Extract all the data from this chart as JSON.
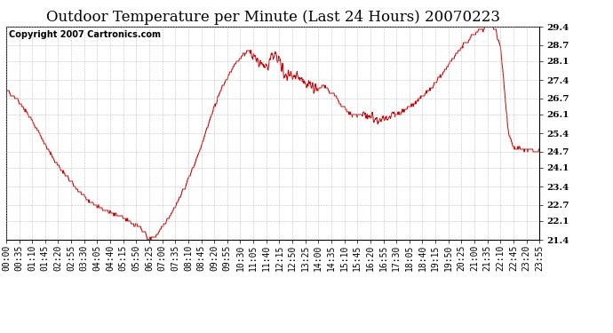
{
  "title": "Outdoor Temperature per Minute (Last 24 Hours) 20070223",
  "copyright_text": "Copyright 2007 Cartronics.com",
  "line_color": "#cc0000",
  "background_color": "#ffffff",
  "plot_bg_color": "#ffffff",
  "grid_color": "#bbbbbb",
  "y_min": 21.4,
  "y_max": 29.4,
  "y_ticks": [
    21.4,
    22.1,
    22.7,
    23.4,
    24.1,
    24.7,
    25.4,
    26.1,
    26.7,
    27.4,
    28.1,
    28.7,
    29.4
  ],
  "x_labels": [
    "00:00",
    "00:35",
    "01:10",
    "01:45",
    "02:20",
    "02:55",
    "03:30",
    "04:05",
    "04:40",
    "05:15",
    "05:50",
    "06:25",
    "07:00",
    "07:35",
    "08:10",
    "08:45",
    "09:20",
    "09:55",
    "10:30",
    "11:05",
    "11:40",
    "12:15",
    "12:50",
    "13:25",
    "14:00",
    "14:35",
    "15:10",
    "15:45",
    "16:20",
    "16:55",
    "17:30",
    "18:05",
    "18:40",
    "19:15",
    "19:50",
    "20:25",
    "21:00",
    "21:35",
    "22:10",
    "22:45",
    "23:20",
    "23:55"
  ],
  "title_fontsize": 12,
  "copyright_fontsize": 7,
  "tick_fontsize": 7,
  "waypoints_x": [
    0,
    30,
    60,
    90,
    120,
    150,
    180,
    210,
    240,
    270,
    300,
    330,
    360,
    385,
    400,
    420,
    450,
    480,
    510,
    530,
    545,
    560,
    575,
    590,
    610,
    625,
    640,
    655,
    665,
    675,
    690,
    700,
    715,
    725,
    735,
    745,
    755,
    770,
    785,
    800,
    820,
    840,
    855,
    870,
    885,
    900,
    915,
    930,
    945,
    960,
    975,
    990,
    1005,
    1020,
    1035,
    1050,
    1065,
    1080,
    1100,
    1120,
    1140,
    1160,
    1185,
    1210,
    1235,
    1260,
    1280,
    1300,
    1320,
    1335,
    1345,
    1355,
    1365,
    1375,
    1395,
    1415,
    1439
  ],
  "waypoints_y": [
    27.0,
    26.7,
    26.1,
    25.4,
    24.6,
    24.0,
    23.5,
    23.0,
    22.7,
    22.5,
    22.3,
    22.1,
    21.9,
    21.4,
    21.5,
    21.8,
    22.5,
    23.3,
    24.3,
    25.1,
    25.7,
    26.3,
    26.9,
    27.3,
    27.8,
    28.1,
    28.4,
    28.5,
    28.3,
    28.1,
    28.0,
    27.9,
    28.1,
    28.4,
    28.2,
    27.8,
    27.6,
    27.5,
    27.6,
    27.4,
    27.2,
    27.0,
    27.2,
    27.0,
    26.8,
    26.5,
    26.3,
    26.1,
    26.1,
    26.0,
    26.1,
    25.9,
    25.8,
    25.9,
    26.0,
    26.1,
    26.2,
    26.3,
    26.5,
    26.7,
    27.0,
    27.3,
    27.8,
    28.3,
    28.7,
    29.1,
    29.3,
    29.4,
    29.35,
    28.5,
    27.0,
    25.5,
    25.0,
    24.8,
    24.8,
    24.75,
    24.7
  ]
}
